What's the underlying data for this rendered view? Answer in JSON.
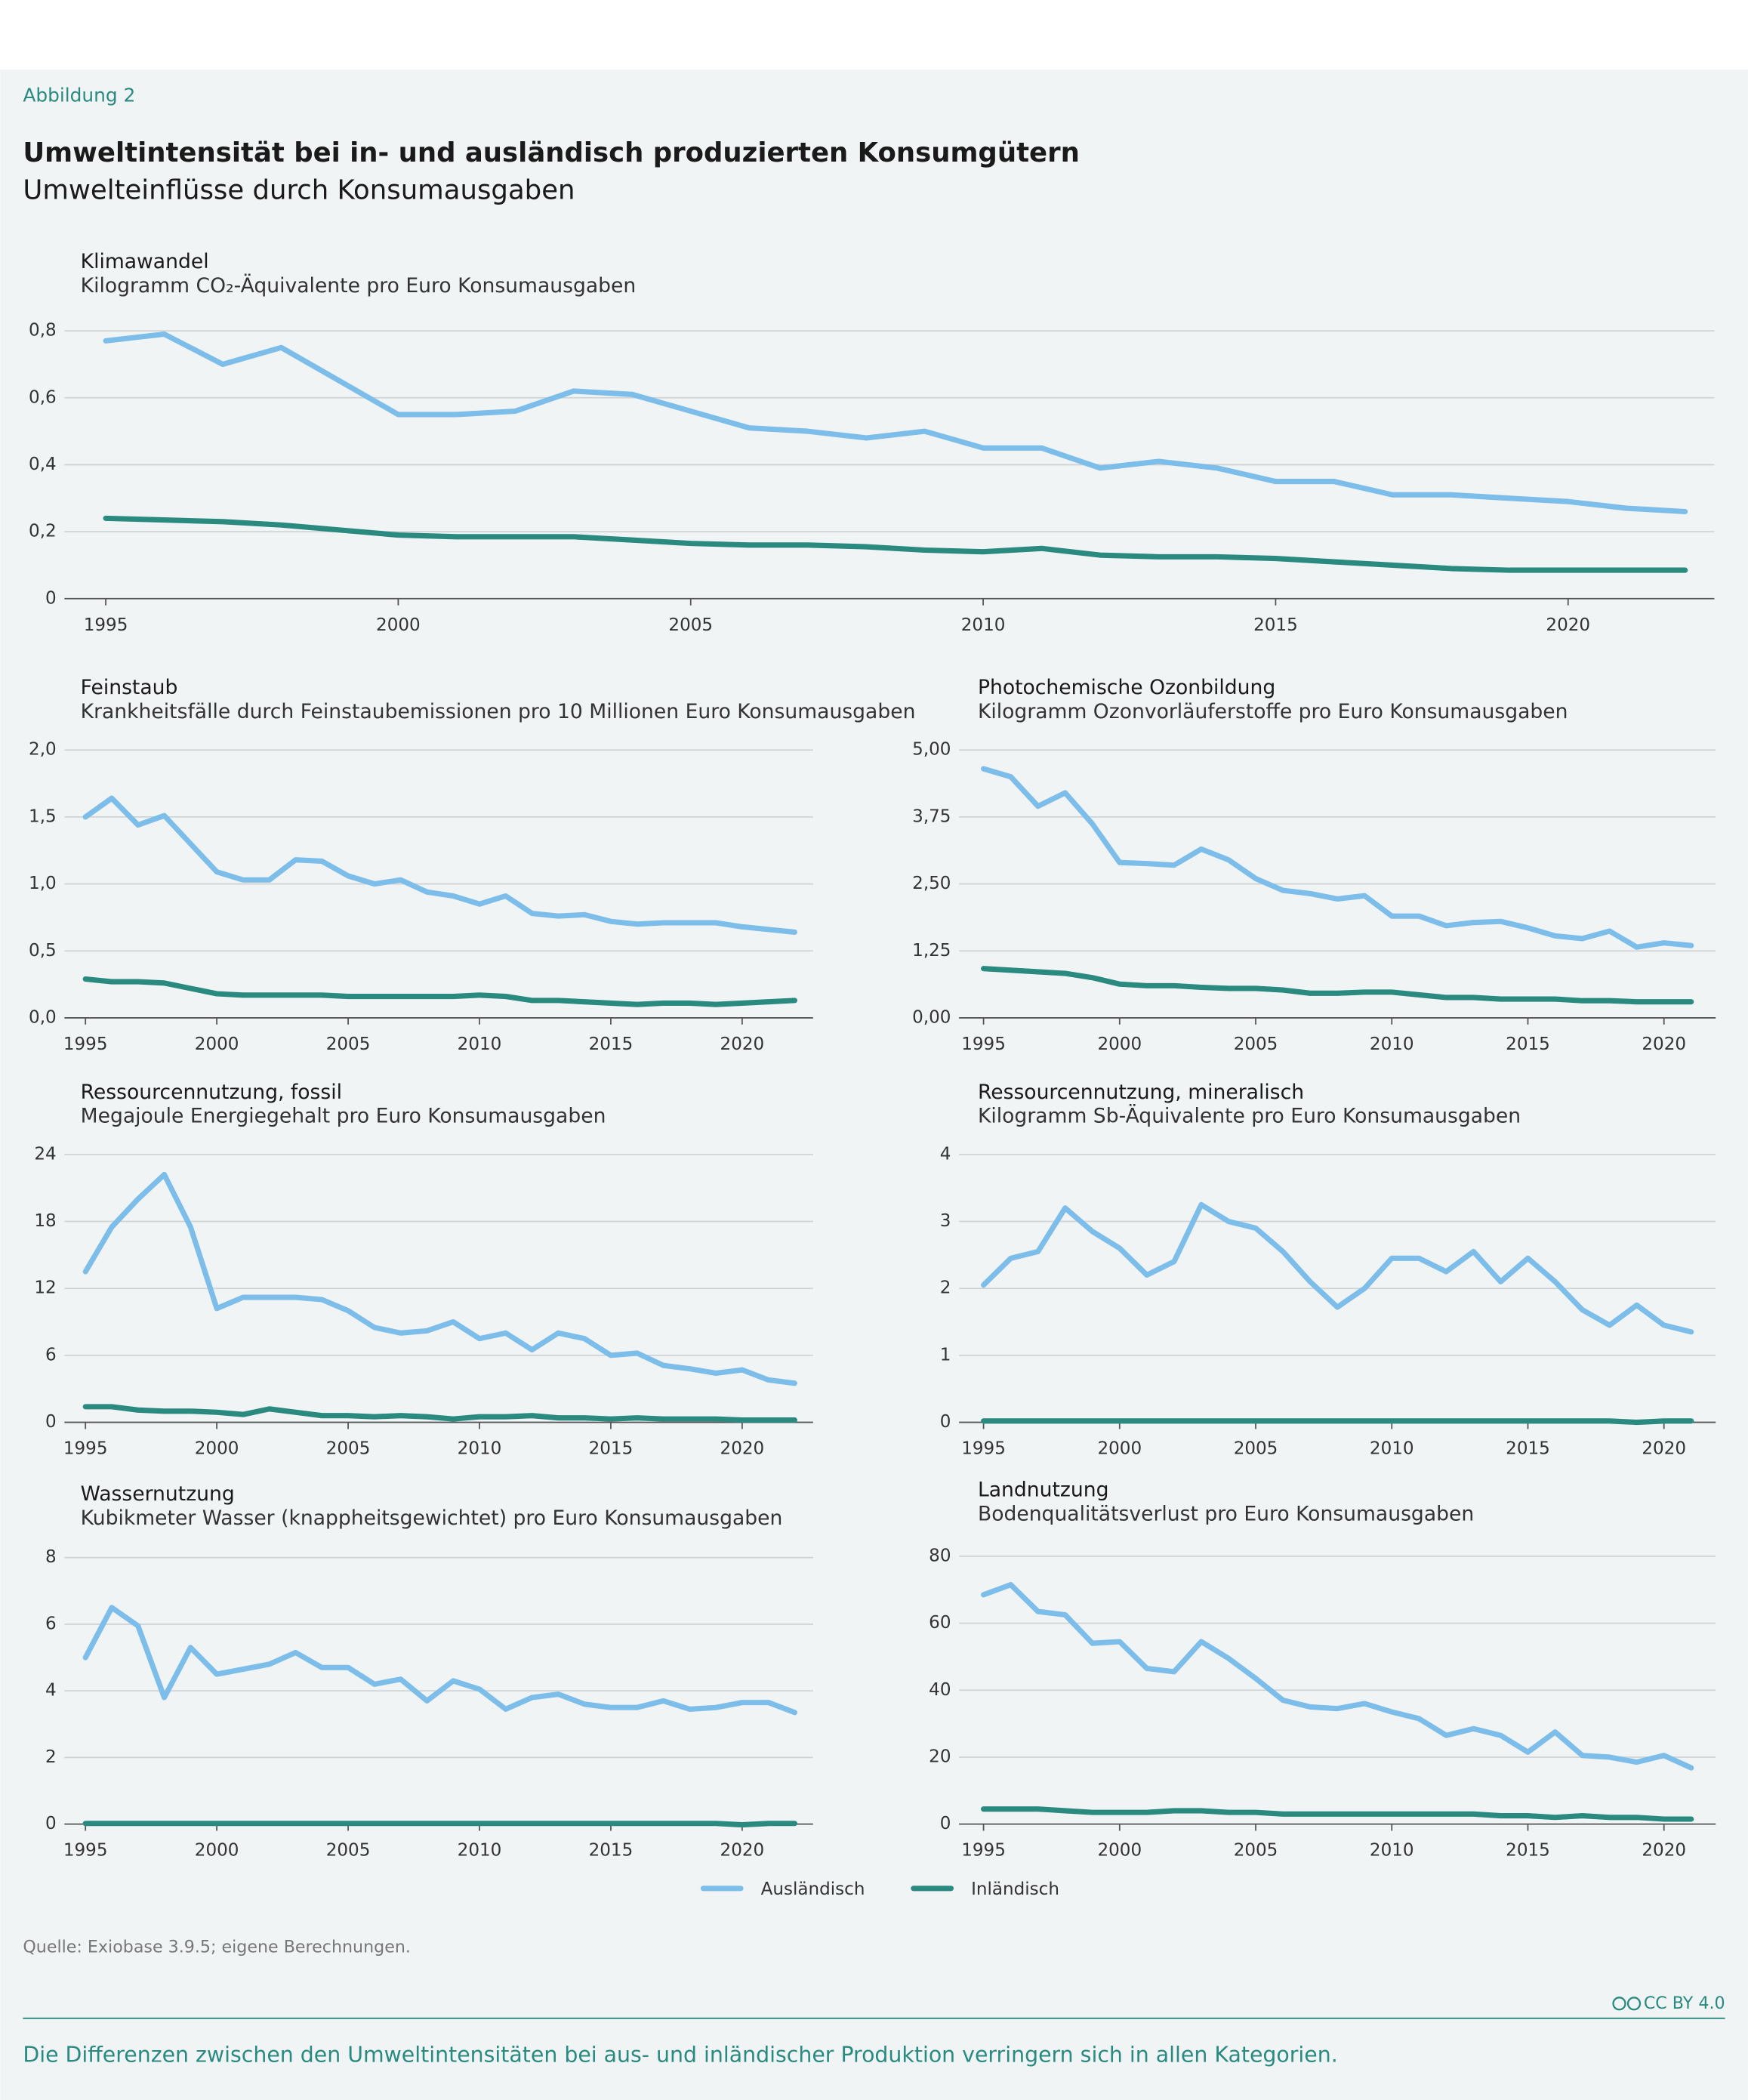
{
  "header": {
    "label": "Abbildung 2",
    "title": "Umweltintensität bei in- und ausländisch produzierten Konsumgütern",
    "subtitle": "Umwelteinflüsse durch Konsumausgaben"
  },
  "legend": [
    {
      "name": "Ausländisch",
      "color": "#7dbde9"
    },
    {
      "name": "Inländisch",
      "color": "#2a8a80"
    }
  ],
  "chart_data": [
    {
      "type": "line",
      "title": "Klimawandel",
      "subtitle": "Kilogramm CO₂-Äquivalente pro Euro Konsumausgaben",
      "x": [
        1995,
        1996,
        1997,
        1998,
        1999,
        2000,
        2001,
        2002,
        2003,
        2004,
        2005,
        2006,
        2007,
        2008,
        2009,
        2010,
        2011,
        2012,
        2013,
        2014,
        2015,
        2016,
        2017,
        2018,
        2019,
        2020,
        2021,
        2022
      ],
      "series": [
        {
          "values": [
            0.77,
            0.79,
            0.7,
            0.75,
            0.65,
            0.55,
            0.55,
            0.56,
            0.62,
            0.61,
            0.56,
            0.51,
            0.5,
            0.48,
            0.5,
            0.45,
            0.45,
            0.39,
            0.41,
            0.39,
            0.35,
            0.35,
            0.31,
            0.31,
            0.3,
            0.29,
            0.27,
            0.26
          ]
        },
        {
          "values": [
            0.24,
            0.235,
            0.23,
            0.22,
            0.205,
            0.19,
            0.185,
            0.185,
            0.185,
            0.175,
            0.165,
            0.16,
            0.16,
            0.155,
            0.145,
            0.14,
            0.15,
            0.13,
            0.125,
            0.125,
            0.12,
            0.11,
            0.1,
            0.09,
            0.085,
            0.085,
            0.085,
            0.085
          ]
        }
      ],
      "xlim": [
        1994.5,
        2022.5
      ],
      "ylim": [
        0,
        0.8
      ],
      "xticks": [
        1995,
        2000,
        2005,
        2010,
        2015,
        2020
      ],
      "yticks": [
        0,
        {
          "value": 0.2,
          "label": "0,2"
        },
        {
          "value": 0.4,
          "label": "0,4"
        },
        {
          "value": 0.6,
          "label": "0,6"
        },
        {
          "value": 0.8,
          "label": "0,8"
        }
      ],
      "grid": true
    },
    {
      "type": "line",
      "title": "Feinstaub",
      "subtitle": "Krankheitsfälle durch Feinstaubemissionen pro 10 Millionen Euro Konsumausgaben",
      "x": [
        1995,
        1996,
        1997,
        1998,
        1999,
        2000,
        2001,
        2002,
        2003,
        2004,
        2005,
        2006,
        2007,
        2008,
        2009,
        2010,
        2011,
        2012,
        2013,
        2014,
        2015,
        2016,
        2017,
        2018,
        2019,
        2020,
        2021,
        2022
      ],
      "series": [
        {
          "values": [
            1.5,
            1.64,
            1.44,
            1.51,
            1.3,
            1.09,
            1.03,
            1.03,
            1.18,
            1.17,
            1.06,
            1.0,
            1.03,
            0.94,
            0.91,
            0.85,
            0.91,
            0.78,
            0.76,
            0.77,
            0.72,
            0.7,
            0.71,
            0.71,
            0.71,
            0.68,
            0.66,
            0.64
          ]
        },
        {
          "values": [
            0.29,
            0.27,
            0.27,
            0.26,
            0.22,
            0.18,
            0.17,
            0.17,
            0.17,
            0.17,
            0.16,
            0.16,
            0.16,
            0.16,
            0.16,
            0.17,
            0.16,
            0.13,
            0.13,
            0.12,
            0.11,
            0.1,
            0.11,
            0.11,
            0.1,
            0.11,
            0.12,
            0.13
          ]
        }
      ],
      "xlim": [
        1994.2,
        2022.7
      ],
      "ylim": [
        0,
        2
      ],
      "xticks": [
        1995,
        2000,
        2005,
        2010,
        2015,
        2020
      ],
      "yticks": [
        {
          "value": 0,
          "label": "0,0"
        },
        {
          "value": 0.5,
          "label": "0,5"
        },
        {
          "value": 1,
          "label": "1,0"
        },
        {
          "value": 1.5,
          "label": "1,5"
        },
        {
          "value": 2,
          "label": "2,0"
        }
      ],
      "grid": true
    },
    {
      "type": "line",
      "title": "Photochemische Ozonbildung",
      "subtitle": "Kilogramm Ozonvorläuferstoffe pro Euro Konsumausgaben",
      "x": [
        1995,
        1996,
        1997,
        1998,
        1999,
        2000,
        2001,
        2002,
        2003,
        2004,
        2005,
        2006,
        2007,
        2008,
        2009,
        2010,
        2011,
        2012,
        2013,
        2014,
        2015,
        2016,
        2017,
        2018,
        2019,
        2020,
        2021
      ],
      "series": [
        {
          "values": [
            4.65,
            4.5,
            3.95,
            4.2,
            3.62,
            2.9,
            2.88,
            2.85,
            3.15,
            2.95,
            2.6,
            2.38,
            2.32,
            2.22,
            2.28,
            1.9,
            1.9,
            1.72,
            1.78,
            1.8,
            1.68,
            1.53,
            1.48,
            1.62,
            1.32,
            1.4,
            1.35
          ]
        },
        {
          "values": [
            0.92,
            0.89,
            0.86,
            0.83,
            0.75,
            0.63,
            0.6,
            0.6,
            0.57,
            0.55,
            0.55,
            0.52,
            0.46,
            0.46,
            0.48,
            0.48,
            0.43,
            0.38,
            0.38,
            0.35,
            0.35,
            0.35,
            0.32,
            0.32,
            0.3,
            0.3,
            0.3
          ]
        }
      ],
      "xlim": [
        1994.1,
        2021.9
      ],
      "ylim": [
        0,
        5
      ],
      "xticks": [
        1995,
        2000,
        2005,
        2010,
        2015,
        2020
      ],
      "yticks": [
        {
          "value": 0,
          "label": "0,00"
        },
        {
          "value": 1.25,
          "label": "1,25"
        },
        {
          "value": 2.5,
          "label": "2,50"
        },
        {
          "value": 3.75,
          "label": "3,75"
        },
        {
          "value": 5,
          "label": "5,00"
        }
      ],
      "grid": true
    },
    {
      "type": "line",
      "title": "Ressourcennutzung, fossil",
      "subtitle": "Megajoule Energiegehalt pro Euro Konsumausgaben",
      "x": [
        1995,
        1996,
        1997,
        1998,
        1999,
        2000,
        2001,
        2002,
        2003,
        2004,
        2005,
        2006,
        2007,
        2008,
        2009,
        2010,
        2011,
        2012,
        2013,
        2014,
        2015,
        2016,
        2017,
        2018,
        2019,
        2020,
        2021,
        2022
      ],
      "series": [
        {
          "values": [
            13.5,
            17.5,
            20,
            22.2,
            17.5,
            10.2,
            11.2,
            11.2,
            11.2,
            11,
            10,
            8.5,
            8,
            8.2,
            9,
            7.5,
            8,
            6.5,
            8,
            7.5,
            6,
            6.2,
            5.1,
            4.8,
            4.4,
            4.7,
            3.8,
            3.5
          ]
        },
        {
          "values": [
            1.4,
            1.4,
            1.1,
            1,
            1,
            0.9,
            0.7,
            1.2,
            0.9,
            0.6,
            0.6,
            0.5,
            0.6,
            0.5,
            0.3,
            0.5,
            0.5,
            0.6,
            0.4,
            0.4,
            0.3,
            0.4,
            0.3,
            0.3,
            0.3,
            0.2,
            0.2,
            0.2
          ]
        }
      ],
      "xlim": [
        1994.2,
        2022.7
      ],
      "ylim": [
        0,
        24
      ],
      "xticks": [
        1995,
        2000,
        2005,
        2010,
        2015,
        2020
      ],
      "yticks": [
        0,
        6,
        12,
        18,
        24
      ],
      "grid": true
    },
    {
      "type": "line",
      "title": "Ressourcennutzung, mineralisch",
      "subtitle": "Kilogramm Sb-Äquivalente pro Euro Konsumausgaben",
      "x": [
        1995,
        1996,
        1997,
        1998,
        1999,
        2000,
        2001,
        2002,
        2003,
        2004,
        2005,
        2006,
        2007,
        2008,
        2009,
        2010,
        2011,
        2012,
        2013,
        2014,
        2015,
        2016,
        2017,
        2018,
        2019,
        2020,
        2021
      ],
      "series": [
        {
          "values": [
            2.05,
            2.45,
            2.55,
            3.2,
            2.85,
            2.6,
            2.2,
            2.4,
            3.25,
            3.0,
            2.9,
            2.55,
            2.1,
            1.72,
            2.0,
            2.45,
            2.45,
            2.25,
            2.55,
            2.1,
            2.45,
            2.1,
            1.68,
            1.45,
            1.75,
            1.45,
            1.35
          ]
        },
        {
          "values": [
            0.02,
            0.02,
            0.02,
            0.02,
            0.02,
            0.02,
            0.02,
            0.02,
            0.02,
            0.02,
            0.02,
            0.02,
            0.02,
            0.02,
            0.02,
            0.02,
            0.02,
            0.02,
            0.02,
            0.02,
            0.02,
            0.02,
            0.02,
            0.02,
            0.0,
            0.02,
            0.02
          ]
        }
      ],
      "xlim": [
        1994.1,
        2021.9
      ],
      "ylim": [
        0,
        4
      ],
      "xticks": [
        1995,
        2000,
        2005,
        2010,
        2015,
        2020
      ],
      "yticks": [
        0,
        1,
        2,
        3,
        4
      ],
      "grid": true
    },
    {
      "type": "line",
      "title": "Wassernutzung",
      "subtitle": "Kubikmeter Wasser (knappheitsgewichtet) pro Euro Konsumausgaben",
      "x": [
        1995,
        1996,
        1997,
        1998,
        1999,
        2000,
        2001,
        2002,
        2003,
        2004,
        2005,
        2006,
        2007,
        2008,
        2009,
        2010,
        2011,
        2012,
        2013,
        2014,
        2015,
        2016,
        2017,
        2018,
        2019,
        2020,
        2021,
        2022
      ],
      "series": [
        {
          "values": [
            5,
            6.5,
            5.95,
            3.8,
            5.3,
            4.5,
            4.65,
            4.8,
            5.15,
            4.7,
            4.7,
            4.2,
            4.35,
            3.7,
            4.3,
            4.05,
            3.45,
            3.8,
            3.9,
            3.6,
            3.5,
            3.5,
            3.7,
            3.45,
            3.5,
            3.65,
            3.65,
            3.35
          ]
        },
        {
          "values": [
            0.02,
            0.02,
            0.02,
            0.02,
            0.02,
            0.02,
            0.02,
            0.02,
            0.02,
            0.02,
            0.02,
            0.02,
            0.02,
            0.02,
            0.02,
            0.02,
            0.02,
            0.02,
            0.02,
            0.02,
            0.02,
            0.02,
            0.02,
            0.02,
            0.02,
            -0.02,
            0.02,
            0.02
          ]
        }
      ],
      "xlim": [
        1994.2,
        2022.7
      ],
      "ylim": [
        0,
        8
      ],
      "xticks": [
        1995,
        2000,
        2005,
        2010,
        2015,
        2020
      ],
      "yticks": [
        0,
        2,
        4,
        6,
        8
      ],
      "grid": true
    },
    {
      "type": "line",
      "title": "Landnutzung",
      "subtitle": "Bodenqualitätsverlust pro Euro Konsumausgaben",
      "x": [
        1995,
        1996,
        1997,
        1998,
        1999,
        2000,
        2001,
        2002,
        2003,
        2004,
        2005,
        2006,
        2007,
        2008,
        2009,
        2010,
        2011,
        2012,
        2013,
        2014,
        2015,
        2016,
        2017,
        2018,
        2019,
        2020,
        2021
      ],
      "series": [
        {
          "values": [
            68.5,
            71.5,
            63.5,
            62.5,
            54,
            54.5,
            46.5,
            45.5,
            54.5,
            49.5,
            43.5,
            37,
            35,
            34.5,
            36,
            33.5,
            31.5,
            26.5,
            28.5,
            26.5,
            21.5,
            27.5,
            20.5,
            20,
            18.5,
            20.5,
            16.8
          ]
        },
        {
          "values": [
            4.5,
            4.5,
            4.5,
            4,
            3.5,
            3.5,
            3.5,
            4,
            4,
            3.5,
            3.5,
            3,
            3,
            3,
            3,
            3,
            3,
            3,
            3,
            2.5,
            2.5,
            2,
            2.5,
            2,
            2,
            1.5,
            1.5
          ]
        }
      ],
      "xlim": [
        1994.1,
        2021.9
      ],
      "ylim": [
        0,
        80
      ],
      "xticks": [
        1995,
        2000,
        2005,
        2010,
        2015,
        2020
      ],
      "yticks": [
        0,
        20,
        40,
        60,
        80
      ],
      "grid": true
    }
  ],
  "source": "Quelle: Exiobase 3.9.5; eigene Berechnungen.",
  "license": "CC BY 4.0",
  "footer": "Die Differenzen zwischen den Umweltintensitäten bei aus- und inländischer Produktion verringern sich in allen Kategorien."
}
